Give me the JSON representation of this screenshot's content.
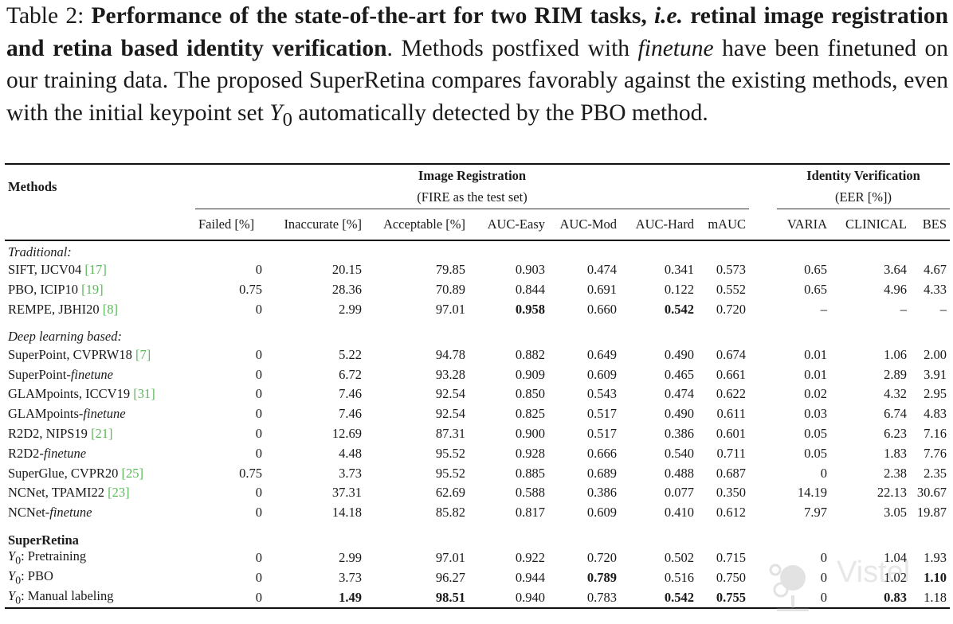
{
  "caption": {
    "label": "Table 2: ",
    "bold": "Performance of the state-of-the-art for two RIM tasks, ",
    "bold_italic": "i.e.",
    "bold2": " retinal image registration and retina based identity verification",
    "text1": ". Methods postfixed with ",
    "italic": "finetune",
    "text2": " have been finetuned on our training data. The proposed SuperRetina compares favorably against the existing methods, even with the initial keypoint set ",
    "var": "Y",
    "sub": "0",
    "text3": " automatically detected by the PBO method."
  },
  "header": {
    "methods": "Methods",
    "group1": "Image Registration",
    "group1_sub": "(FIRE as the test set)",
    "group2": "Identity Verification",
    "group2_sub": "(EER [%])",
    "columns": [
      "Failed [%]",
      "Inaccurate [%]",
      "Acceptable [%]",
      "AUC-Easy",
      "AUC-Mod",
      "AUC-Hard",
      "mAUC",
      "VARIA",
      "CLINICAL",
      "BES"
    ]
  },
  "sections": [
    {
      "title": "Traditional:",
      "bold_title": false,
      "rows": [
        {
          "name": "SIFT, IJCV04 ",
          "ref": "[17]",
          "values": [
            "0",
            "20.15",
            "79.85",
            "0.903",
            "0.474",
            "0.341",
            "0.573",
            "0.65",
            "3.64",
            "4.67"
          ],
          "bold": []
        },
        {
          "name": "PBO, ICIP10 ",
          "ref": "[19]",
          "values": [
            "0.75",
            "28.36",
            "70.89",
            "0.844",
            "0.691",
            "0.122",
            "0.552",
            "0.65",
            "4.96",
            "4.33"
          ],
          "bold": []
        },
        {
          "name": "REMPE, JBHI20 ",
          "ref": "[8]",
          "values": [
            "0",
            "2.99",
            "97.01",
            "0.958",
            "0.660",
            "0.542",
            "0.720",
            "–",
            "–",
            "–"
          ],
          "bold": [
            3,
            5
          ]
        }
      ]
    },
    {
      "title": "Deep learning based:",
      "bold_title": false,
      "rows": [
        {
          "name": "SuperPoint, CVPRW18 ",
          "ref": "[7]",
          "values": [
            "0",
            "5.22",
            "94.78",
            "0.882",
            "0.649",
            "0.490",
            "0.674",
            "0.01",
            "1.06",
            "2.00"
          ],
          "bold": []
        },
        {
          "name": "SuperPoint-",
          "ital": "finetune",
          "values": [
            "0",
            "6.72",
            "93.28",
            "0.909",
            "0.609",
            "0.465",
            "0.661",
            "0.01",
            "2.89",
            "3.91"
          ],
          "bold": []
        },
        {
          "name": "GLAMpoints, ICCV19 ",
          "ref": "[31]",
          "values": [
            "0",
            "7.46",
            "92.54",
            "0.850",
            "0.543",
            "0.474",
            "0.622",
            "0.02",
            "4.32",
            "2.95"
          ],
          "bold": []
        },
        {
          "name": "GLAMpoints-",
          "ital": "finetune",
          "values": [
            "0",
            "7.46",
            "92.54",
            "0.825",
            "0.517",
            "0.490",
            "0.611",
            "0.03",
            "6.74",
            "4.83"
          ],
          "bold": []
        },
        {
          "name": "R2D2, NIPS19 ",
          "ref": "[21]",
          "values": [
            "0",
            "12.69",
            "87.31",
            "0.900",
            "0.517",
            "0.386",
            "0.601",
            "0.05",
            "6.23",
            "7.16"
          ],
          "bold": []
        },
        {
          "name": "R2D2-",
          "ital": "finetune",
          "values": [
            "0",
            "4.48",
            "95.52",
            "0.928",
            "0.666",
            "0.540",
            "0.711",
            "0.05",
            "1.83",
            "7.76"
          ],
          "bold": []
        },
        {
          "name": "SuperGlue, CVPR20 ",
          "ref": "[25]",
          "values": [
            "0.75",
            "3.73",
            "95.52",
            "0.885",
            "0.689",
            "0.488",
            "0.687",
            "0",
            "2.38",
            "2.35"
          ],
          "bold": []
        },
        {
          "name": "NCNet, TPAMI22 ",
          "ref": "[23]",
          "values": [
            "0",
            "37.31",
            "62.69",
            "0.588",
            "0.386",
            "0.077",
            "0.350",
            "14.19",
            "22.13",
            "30.67"
          ],
          "bold": []
        },
        {
          "name": "NCNet-",
          "ital": "finetune",
          "values": [
            "0",
            "14.18",
            "85.82",
            "0.817",
            "0.609",
            "0.410",
            "0.612",
            "7.97",
            "3.05",
            "19.87"
          ],
          "bold": []
        }
      ]
    },
    {
      "title": "SuperRetina",
      "bold_title": true,
      "rows": [
        {
          "var": "Y",
          "sub": "0",
          "name": ": Pretraining",
          "values": [
            "0",
            "2.99",
            "97.01",
            "0.922",
            "0.720",
            "0.502",
            "0.715",
            "0",
            "1.04",
            "1.93"
          ],
          "bold": []
        },
        {
          "var": "Y",
          "sub": "0",
          "name": ": PBO",
          "values": [
            "0",
            "3.73",
            "96.27",
            "0.944",
            "0.789",
            "0.516",
            "0.750",
            "0",
            "1.02",
            "1.10"
          ],
          "bold": [
            4,
            9
          ]
        },
        {
          "var": "Y",
          "sub": "0",
          "name": ": Manual labeling",
          "values": [
            "0",
            "1.49",
            "98.51",
            "0.940",
            "0.783",
            "0.542",
            "0.755",
            "0",
            "0.83",
            "1.18"
          ],
          "bold": [
            1,
            2,
            5,
            6,
            8
          ]
        }
      ]
    }
  ],
  "watermark": "Vistel 致远慧图",
  "colors": {
    "reference": "#5cb85c",
    "text": "#1a1a1a"
  }
}
